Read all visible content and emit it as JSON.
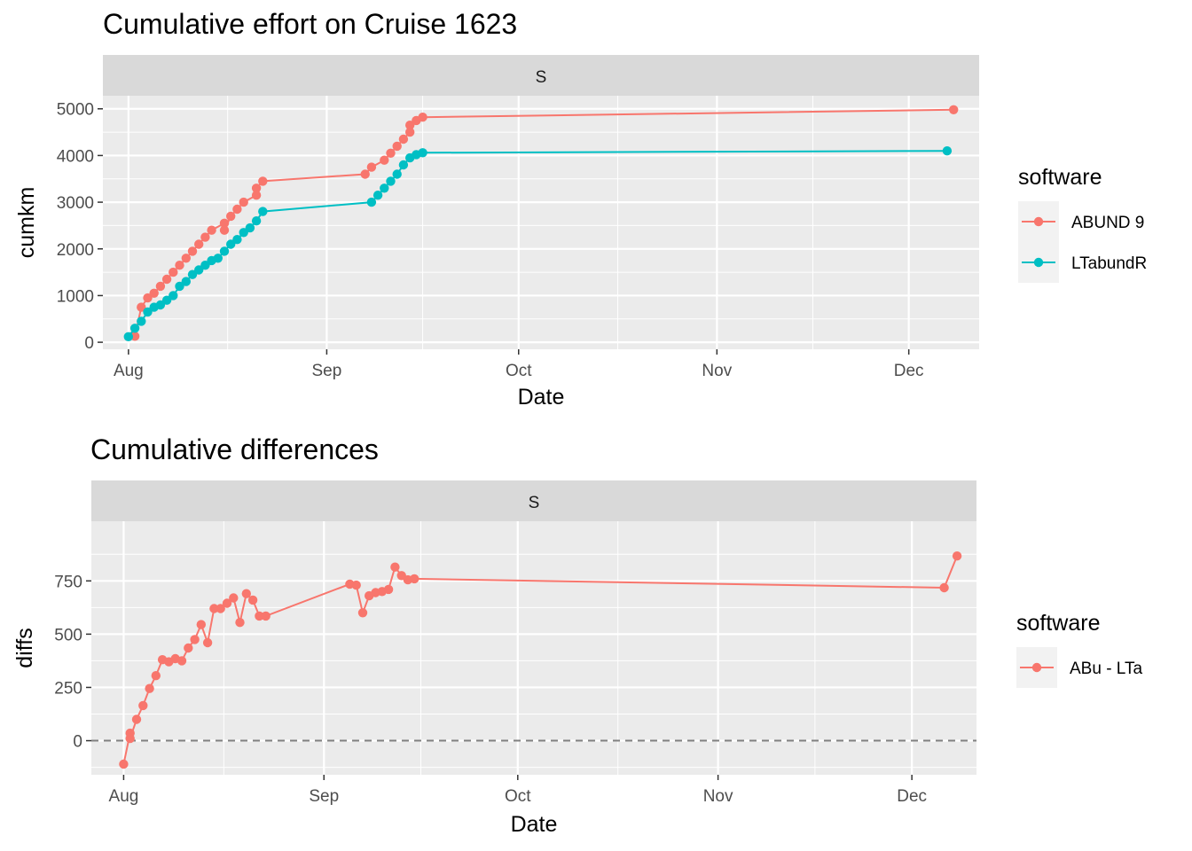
{
  "chart_data": [
    {
      "type": "line",
      "title": "Cumulative effort on Cruise 1623",
      "facet_label": "S",
      "xlabel": "Date",
      "ylabel": "cumkm",
      "x_ticks": [
        "Aug",
        "Sep",
        "Oct",
        "Nov",
        "Dec"
      ],
      "y_ticks": [
        "0",
        "1000",
        "2000",
        "3000",
        "4000",
        "5000"
      ],
      "ylim": [
        -150,
        5280
      ],
      "grid": true,
      "legend": {
        "title": "software",
        "position": "right"
      },
      "series": [
        {
          "name": "ABUND 9",
          "color": "#F8766D",
          "x": [
            "2018-08-02",
            "2018-08-03",
            "2018-08-04",
            "2018-08-05",
            "2018-08-06",
            "2018-08-07",
            "2018-08-08",
            "2018-08-09",
            "2018-08-10",
            "2018-08-11",
            "2018-08-12",
            "2018-08-13",
            "2018-08-14",
            "2018-08-16",
            "2018-08-16",
            "2018-08-17",
            "2018-08-18",
            "2018-08-19",
            "2018-08-21",
            "2018-08-21",
            "2018-08-22",
            "2018-09-07",
            "2018-09-08",
            "2018-09-10",
            "2018-09-11",
            "2018-09-12",
            "2018-09-13",
            "2018-09-14",
            "2018-09-14",
            "2018-09-15",
            "2018-09-16",
            "2018-12-08"
          ],
          "y": [
            130,
            750,
            950,
            1050,
            1200,
            1350,
            1500,
            1650,
            1800,
            1950,
            2100,
            2250,
            2400,
            2550,
            2400,
            2700,
            2850,
            3000,
            3150,
            3300,
            3450,
            3600,
            3750,
            3900,
            4050,
            4200,
            4350,
            4500,
            4650,
            4750,
            4820,
            4980
          ]
        },
        {
          "name": "LTabundR",
          "color": "#00BFC4",
          "x": [
            "2018-08-01",
            "2018-08-02",
            "2018-08-03",
            "2018-08-04",
            "2018-08-05",
            "2018-08-06",
            "2018-08-07",
            "2018-08-08",
            "2018-08-09",
            "2018-08-10",
            "2018-08-11",
            "2018-08-12",
            "2018-08-13",
            "2018-08-14",
            "2018-08-15",
            "2018-08-16",
            "2018-08-17",
            "2018-08-18",
            "2018-08-19",
            "2018-08-20",
            "2018-08-21",
            "2018-08-22",
            "2018-09-08",
            "2018-09-09",
            "2018-09-10",
            "2018-09-11",
            "2018-09-12",
            "2018-09-13",
            "2018-09-14",
            "2018-09-15",
            "2018-09-16",
            "2018-12-07"
          ],
          "y": [
            120,
            300,
            450,
            650,
            750,
            800,
            900,
            1000,
            1200,
            1300,
            1450,
            1550,
            1650,
            1750,
            1800,
            1950,
            2100,
            2200,
            2350,
            2450,
            2600,
            2800,
            3000,
            3150,
            3300,
            3450,
            3600,
            3800,
            3950,
            4020,
            4060,
            4100
          ]
        }
      ]
    },
    {
      "type": "line",
      "title": "Cumulative differences",
      "facet_label": "S",
      "xlabel": "Date",
      "ylabel": "diffs",
      "x_ticks": [
        "Aug",
        "Sep",
        "Oct",
        "Nov",
        "Dec"
      ],
      "y_ticks": [
        "0",
        "250",
        "500",
        "750"
      ],
      "ylim": [
        -160,
        1030
      ],
      "grid": true,
      "reference_line": {
        "y": 0,
        "style": "dashed"
      },
      "legend": {
        "title": "software",
        "position": "right"
      },
      "series": [
        {
          "name": "ABu - LTa",
          "color": "#F8766D",
          "x": [
            "2018-08-01",
            "2018-08-02",
            "2018-08-02",
            "2018-08-03",
            "2018-08-04",
            "2018-08-05",
            "2018-08-06",
            "2018-08-07",
            "2018-08-08",
            "2018-08-09",
            "2018-08-10",
            "2018-08-11",
            "2018-08-12",
            "2018-08-13",
            "2018-08-14",
            "2018-08-15",
            "2018-08-16",
            "2018-08-17",
            "2018-08-18",
            "2018-08-19",
            "2018-08-20",
            "2018-08-21",
            "2018-08-22",
            "2018-08-23",
            "2018-09-05",
            "2018-09-06",
            "2018-09-07",
            "2018-09-08",
            "2018-09-09",
            "2018-09-10",
            "2018-09-11",
            "2018-09-12",
            "2018-09-13",
            "2018-09-14",
            "2018-09-15",
            "2018-12-06",
            "2018-12-08"
          ],
          "y": [
            -110,
            35,
            10,
            100,
            165,
            245,
            305,
            380,
            370,
            385,
            375,
            435,
            475,
            545,
            460,
            620,
            620,
            645,
            670,
            555,
            690,
            660,
            585,
            585,
            735,
            730,
            600,
            680,
            695,
            700,
            710,
            815,
            775,
            755,
            760,
            718,
            867
          ]
        }
      ]
    }
  ]
}
